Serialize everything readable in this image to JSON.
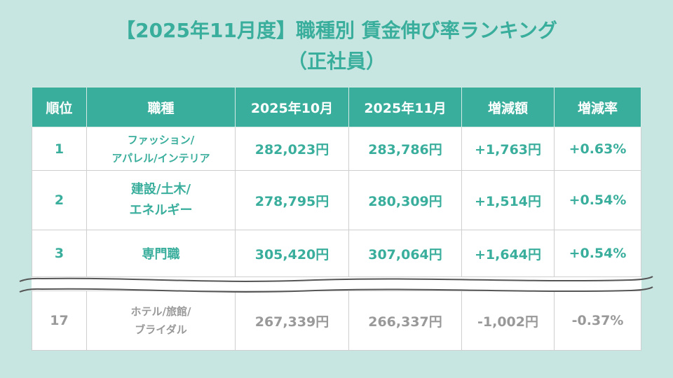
{
  "title_line1": "【2025年11月度】職種別 賃金伸び率ランキング",
  "title_line2": "（正社員）",
  "colors": {
    "accent": "#3aae9c",
    "background": "#c8e6e1",
    "muted_text": "#999999"
  },
  "table": {
    "headers": [
      "順位",
      "職種",
      "2025年10月",
      "2025年11月",
      "増減額",
      "増減率"
    ],
    "rows": [
      {
        "rank": "1",
        "job_line1": "ファッション/",
        "job_line2": "アパレル/インテリア",
        "oct": "282,023円",
        "nov": "283,786円",
        "diff": "+1,763円",
        "rate": "+0.63%"
      },
      {
        "rank": "2",
        "job_line1": "建設/土木/",
        "job_line2": "エネルギー",
        "oct": "278,795円",
        "nov": "280,309円",
        "diff": "+1,514円",
        "rate": "+0.54%"
      },
      {
        "rank": "3",
        "job_line1": "専門職",
        "job_line2": "",
        "oct": "305,420円",
        "nov": "307,064円",
        "diff": "+1,644円",
        "rate": "+0.54%"
      },
      {
        "rank": "17",
        "job_line1": "ホテル/旅館/",
        "job_line2": "ブライダル",
        "oct": "267,339円",
        "nov": "266,337円",
        "diff": "-1,002円",
        "rate": "-0.37%"
      }
    ]
  }
}
